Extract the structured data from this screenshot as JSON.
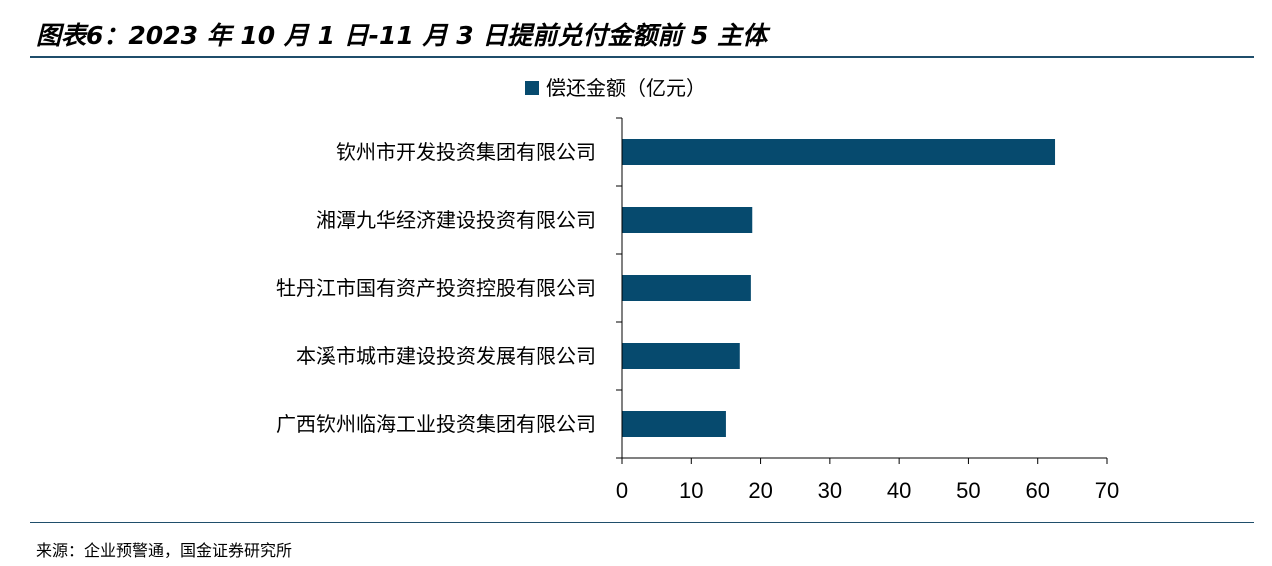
{
  "figure": {
    "title": "图表6：2023 年 10 月 1 日-11 月 3 日提前兑付金额前 5 主体",
    "source": "来源：企业预警通，国金证券研究所"
  },
  "colors": {
    "bar": "#064a6e",
    "rule": "#1f4e6b",
    "axis": "#000000"
  },
  "chart_data": {
    "type": "bar",
    "orientation": "horizontal",
    "categories": [
      "钦州市开发投资集团有限公司",
      "湘潭九华经济建设投资有限公司",
      "牡丹江市国有资产投资控股有限公司",
      "本溪市城市建设投资发展有限公司",
      "广西钦州临海工业投资集团有限公司"
    ],
    "series": [
      {
        "name": "偿还金额（亿元）",
        "values": [
          62.5,
          18.8,
          18.6,
          17.0,
          15.0
        ]
      }
    ],
    "xlim": [
      0,
      70
    ],
    "xticks": [
      "0",
      "10",
      "20",
      "30",
      "40",
      "50",
      "60",
      "70"
    ],
    "grid": false,
    "legend_position": "top-center"
  }
}
